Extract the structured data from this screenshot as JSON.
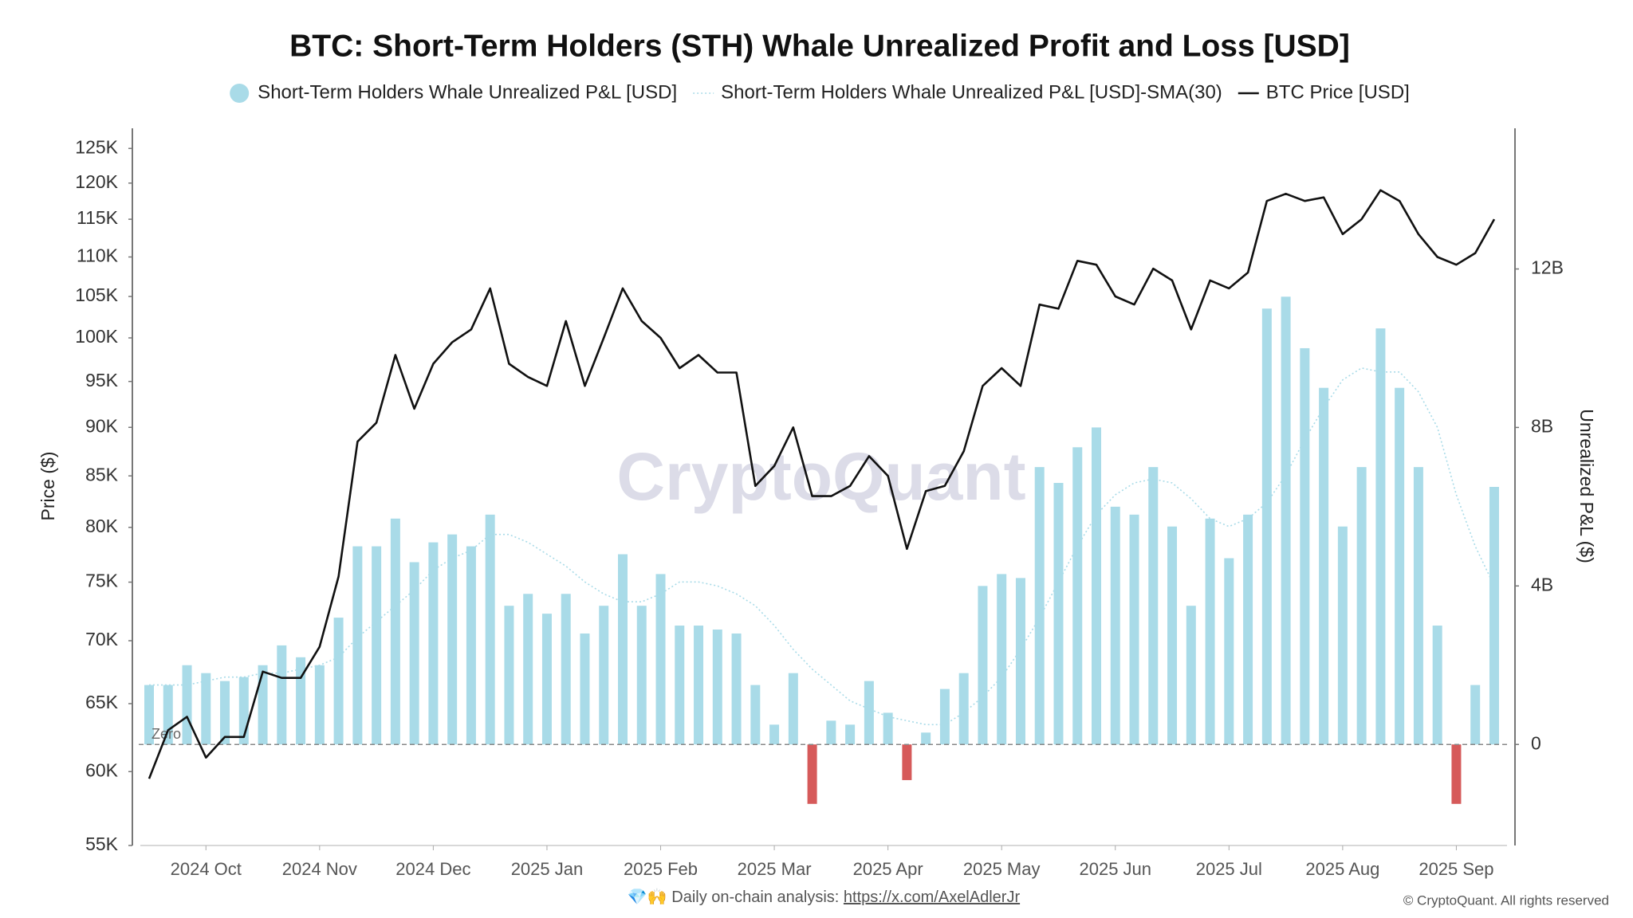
{
  "chart_data": {
    "type": "combo",
    "title": "BTC: Short-Term Holders (STH) Whale Unrealized Profit and Loss [USD]",
    "y_label": "Price ($)",
    "y2_label": "Unrealized P&L ($)",
    "log_scale": true,
    "grid": false,
    "legend_position": "top",
    "categories": [
      null,
      null,
      null,
      "2024 Oct",
      null,
      null,
      null,
      null,
      null,
      "2024 Nov",
      null,
      null,
      null,
      null,
      null,
      "2024 Dec",
      null,
      null,
      null,
      null,
      null,
      "2025 Jan",
      null,
      null,
      null,
      null,
      null,
      "2025 Feb",
      null,
      null,
      null,
      null,
      null,
      "2025 Mar",
      null,
      null,
      null,
      null,
      null,
      "2025 Apr",
      null,
      null,
      null,
      null,
      null,
      "2025 May",
      null,
      null,
      null,
      null,
      null,
      "2025 Jun",
      null,
      null,
      null,
      null,
      null,
      "2025 Jul",
      null,
      null,
      null,
      null,
      null,
      "2025 Aug",
      null,
      null,
      null,
      null,
      null,
      "2025 Sep",
      null,
      null
    ],
    "ylim": [
      55000,
      128000
    ],
    "yticks": [
      {
        "value": 55000,
        "label": "55K"
      },
      {
        "value": 60000,
        "label": "60K"
      },
      {
        "value": 65000,
        "label": "65K"
      },
      {
        "value": 70000,
        "label": "70K"
      },
      {
        "value": 75000,
        "label": "75K"
      },
      {
        "value": 80000,
        "label": "80K"
      },
      {
        "value": 85000,
        "label": "85K"
      },
      {
        "value": 90000,
        "label": "90K"
      },
      {
        "value": 95000,
        "label": "95K"
      },
      {
        "value": 100000,
        "label": "100K"
      },
      {
        "value": 105000,
        "label": "105K"
      },
      {
        "value": 110000,
        "label": "110K"
      },
      {
        "value": 115000,
        "label": "115K"
      },
      {
        "value": 120000,
        "label": "120K"
      },
      {
        "value": 125000,
        "label": "125K"
      }
    ],
    "y2lim": [
      -2550000000.0,
      15550000000.0
    ],
    "y2ticks": [
      0,
      {
        "value": 4000000000.0,
        "label": "4B"
      },
      {
        "value": 8000000000.0,
        "label": "8B"
      },
      {
        "value": 12000000000.0,
        "label": "12B"
      }
    ],
    "series": [
      {
        "name": "Short-Term Holders Whale Unrealized P&L [USD]",
        "type": "bar",
        "axis": "y2",
        "color": "#a9dbe8",
        "negative_color": "#d65a5a",
        "values": [
          1500000000.0,
          1500000000.0,
          2000000000.0,
          1800000000.0,
          1600000000.0,
          1700000000.0,
          2000000000.0,
          2500000000.0,
          2200000000.0,
          2000000000.0,
          3200000000.0,
          5000000000.0,
          5000000000.0,
          5700000000.0,
          4600000000.0,
          5100000000.0,
          5300000000.0,
          5000000000.0,
          5800000000.0,
          3500000000.0,
          3800000000.0,
          3300000000.0,
          3800000000.0,
          2800000000.0,
          3500000000.0,
          4800000000.0,
          3500000000.0,
          4300000000.0,
          3000000000.0,
          3000000000.0,
          2900000000.0,
          2800000000.0,
          1500000000.0,
          500000000.0,
          1800000000.0,
          -1500000000.0,
          600000000.0,
          500000000.0,
          1600000000.0,
          800000000.0,
          -900000000.0,
          300000000.0,
          1400000000.0,
          1800000000.0,
          4000000000.0,
          4300000000.0,
          4200000000.0,
          7000000000.0,
          6600000000.0,
          7500000000.0,
          8000000000.0,
          6000000000.0,
          5800000000.0,
          7000000000.0,
          5500000000.0,
          3500000000.0,
          5700000000.0,
          4700000000.0,
          5800000000.0,
          11000000000.0,
          11300000000.0,
          10000000000.0,
          9000000000.0,
          5500000000.0,
          7000000000.0,
          10500000000.0,
          9000000000.0,
          7000000000.0,
          3000000000.0,
          -1500000000.0,
          1500000000.0,
          6500000000.0
        ]
      },
      {
        "name": "Short-Term Holders Whale Unrealized P&L [USD]-SMA(30)",
        "type": "line",
        "dash": "dotted",
        "axis": "y2",
        "color": "#a9dbe8",
        "values": [
          1500000000.0,
          1500000000.0,
          1500000000.0,
          1600000000.0,
          1700000000.0,
          1700000000.0,
          1800000000.0,
          1800000000.0,
          1900000000.0,
          2000000000.0,
          2200000000.0,
          2700000000.0,
          3100000000.0,
          3500000000.0,
          3900000000.0,
          4400000000.0,
          4700000000.0,
          4900000000.0,
          5300000000.0,
          5300000000.0,
          5100000000.0,
          4800000000.0,
          4500000000.0,
          4100000000.0,
          3800000000.0,
          3600000000.0,
          3600000000.0,
          3800000000.0,
          4100000000.0,
          4100000000.0,
          4000000000.0,
          3800000000.0,
          3500000000.0,
          3000000000.0,
          2400000000.0,
          1900000000.0,
          1500000000.0,
          1100000000.0,
          900000000.0,
          700000000.0,
          600000000.0,
          500000000.0,
          500000000.0,
          800000000.0,
          1200000000.0,
          1700000000.0,
          2400000000.0,
          3200000000.0,
          4100000000.0,
          5000000000.0,
          5800000000.0,
          6300000000.0,
          6600000000.0,
          6700000000.0,
          6600000000.0,
          6200000000.0,
          5700000000.0,
          5500000000.0,
          5700000000.0,
          6100000000.0,
          6800000000.0,
          7700000000.0,
          8500000000.0,
          9200000000.0,
          9500000000.0,
          9400000000.0,
          9400000000.0,
          8900000000.0,
          8000000000.0,
          6300000000.0,
          5000000000.0,
          4000000000.0
        ]
      },
      {
        "name": "BTC Price [USD]",
        "type": "line",
        "axis": "y",
        "color": "#111111",
        "values": [
          59500,
          63000,
          64000,
          61000,
          62500,
          62500,
          67500,
          67000,
          67000,
          69500,
          75500,
          88500,
          90500,
          98000,
          92000,
          97000,
          99500,
          101000,
          106000,
          97000,
          95500,
          94500,
          102000,
          94500,
          100000,
          106000,
          102000,
          100000,
          96500,
          98000,
          96000,
          96000,
          84000,
          86000,
          90000,
          83000,
          83000,
          84000,
          87000,
          85000,
          78000,
          83500,
          84000,
          87500,
          94500,
          96500,
          94500,
          104000,
          103500,
          109500,
          109000,
          105000,
          104000,
          108500,
          107000,
          101000,
          107000,
          106000,
          108000,
          117500,
          118500,
          117500,
          118000,
          113000,
          115000,
          119000,
          117500,
          113000,
          110000,
          109000,
          110500,
          115000
        ]
      }
    ],
    "annotations": {
      "watermark": "CryptoQuant",
      "zero_label": "Zero"
    },
    "footer": {
      "emoji": "💎🙌",
      "text": "Daily on-chain analysis:",
      "link": "https://x.com/AxelAdlerJr"
    },
    "copyright": "© CryptoQuant. All rights reserved"
  }
}
